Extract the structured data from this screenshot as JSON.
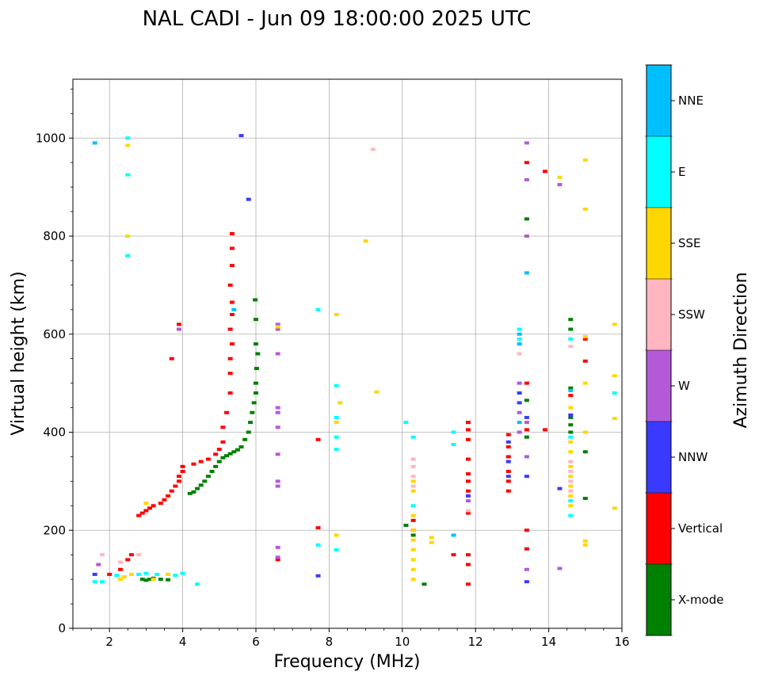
{
  "chart_data": {
    "type": "scatter",
    "title": "NAL CADI - Jun 09 18:00:00 2025 UTC",
    "xlabel": "Frequency (MHz)",
    "ylabel": "Virtual height (km)",
    "xlim": [
      1,
      16
    ],
    "ylim": [
      0,
      1120
    ],
    "xticks": [
      2,
      4,
      6,
      8,
      10,
      12,
      14,
      16
    ],
    "yticks": [
      0,
      200,
      400,
      600,
      800,
      1000
    ],
    "grid": true,
    "colorbar": {
      "title": "Azimuth Direction",
      "categories": [
        "X-mode",
        "Vertical",
        "NNW",
        "W",
        "SSW",
        "SSE",
        "E",
        "NNE"
      ],
      "colors": [
        "#008000",
        "#ff0000",
        "#3a3aff",
        "#b45ad8",
        "#ffb6c1",
        "#ffd700",
        "#00ffff",
        "#00bfff"
      ]
    },
    "series": [
      {
        "name": "X-mode",
        "color": "#008000",
        "points": [
          [
            2.9,
            100
          ],
          [
            3.0,
            98
          ],
          [
            3.1,
            100
          ],
          [
            3.2,
            102
          ],
          [
            3.4,
            100
          ],
          [
            3.6,
            99
          ],
          [
            4.2,
            275
          ],
          [
            4.3,
            278
          ],
          [
            4.4,
            285
          ],
          [
            4.5,
            292
          ],
          [
            4.6,
            300
          ],
          [
            4.7,
            310
          ],
          [
            4.8,
            320
          ],
          [
            4.9,
            330
          ],
          [
            5.0,
            340
          ],
          [
            5.1,
            348
          ],
          [
            5.2,
            352
          ],
          [
            5.3,
            356
          ],
          [
            5.4,
            360
          ],
          [
            5.5,
            364
          ],
          [
            5.6,
            370
          ],
          [
            5.7,
            385
          ],
          [
            5.8,
            400
          ],
          [
            5.85,
            420
          ],
          [
            5.9,
            440
          ],
          [
            5.95,
            460
          ],
          [
            6.0,
            480
          ],
          [
            6.0,
            500
          ],
          [
            6.02,
            530
          ],
          [
            6.05,
            560
          ],
          [
            6.0,
            580
          ],
          [
            6.0,
            630
          ],
          [
            5.98,
            670
          ],
          [
            10.1,
            210
          ],
          [
            10.3,
            190
          ],
          [
            10.6,
            90
          ],
          [
            13.4,
            465
          ],
          [
            13.4,
            390
          ],
          [
            13.4,
            835
          ],
          [
            14.6,
            610
          ],
          [
            14.6,
            630
          ],
          [
            14.6,
            430
          ],
          [
            14.6,
            415
          ],
          [
            14.6,
            400
          ],
          [
            14.6,
            490
          ],
          [
            15.0,
            360
          ],
          [
            15.0,
            265
          ]
        ]
      },
      {
        "name": "Vertical",
        "color": "#ff0000",
        "points": [
          [
            2.0,
            110
          ],
          [
            2.3,
            120
          ],
          [
            2.5,
            140
          ],
          [
            2.6,
            150
          ],
          [
            2.8,
            230
          ],
          [
            2.9,
            235
          ],
          [
            3.0,
            240
          ],
          [
            3.1,
            245
          ],
          [
            3.2,
            250
          ],
          [
            3.4,
            255
          ],
          [
            3.5,
            262
          ],
          [
            3.6,
            270
          ],
          [
            3.7,
            280
          ],
          [
            3.8,
            290
          ],
          [
            3.9,
            300
          ],
          [
            3.9,
            310
          ],
          [
            4.0,
            320
          ],
          [
            4.0,
            330
          ],
          [
            4.3,
            335
          ],
          [
            4.5,
            340
          ],
          [
            4.7,
            345
          ],
          [
            4.9,
            355
          ],
          [
            5.0,
            365
          ],
          [
            5.1,
            380
          ],
          [
            5.1,
            410
          ],
          [
            5.2,
            440
          ],
          [
            5.3,
            480
          ],
          [
            5.3,
            520
          ],
          [
            5.3,
            550
          ],
          [
            5.35,
            580
          ],
          [
            5.3,
            610
          ],
          [
            5.35,
            640
          ],
          [
            5.35,
            665
          ],
          [
            5.3,
            700
          ],
          [
            5.35,
            740
          ],
          [
            5.35,
            775
          ],
          [
            5.35,
            805
          ],
          [
            3.7,
            550
          ],
          [
            3.9,
            620
          ],
          [
            6.6,
            140
          ],
          [
            7.7,
            205
          ],
          [
            7.7,
            385
          ],
          [
            10.3,
            200
          ],
          [
            10.3,
            220
          ],
          [
            11.4,
            150
          ],
          [
            11.8,
            90
          ],
          [
            11.8,
            130
          ],
          [
            11.8,
            150
          ],
          [
            11.8,
            235
          ],
          [
            11.8,
            280
          ],
          [
            11.8,
            300
          ],
          [
            11.8,
            315
          ],
          [
            11.8,
            345
          ],
          [
            11.8,
            385
          ],
          [
            11.8,
            405
          ],
          [
            11.8,
            420
          ],
          [
            12.9,
            280
          ],
          [
            12.9,
            300
          ],
          [
            12.9,
            320
          ],
          [
            12.9,
            350
          ],
          [
            12.9,
            370
          ],
          [
            12.9,
            395
          ],
          [
            13.4,
            162
          ],
          [
            13.4,
            405
          ],
          [
            13.4,
            500
          ],
          [
            13.4,
            950
          ],
          [
            13.9,
            932
          ],
          [
            13.9,
            405
          ],
          [
            15.0,
            590
          ],
          [
            15.0,
            545
          ],
          [
            13.4,
            200
          ],
          [
            14.6,
            475
          ]
        ]
      },
      {
        "name": "NNW",
        "color": "#3a3aff",
        "points": [
          [
            1.6,
            110
          ],
          [
            5.6,
            1005
          ],
          [
            5.8,
            875
          ],
          [
            7.7,
            107
          ],
          [
            12.9,
            310
          ],
          [
            12.9,
            340
          ],
          [
            12.9,
            380
          ],
          [
            13.4,
            95
          ],
          [
            13.4,
            310
          ],
          [
            13.4,
            430
          ],
          [
            14.3,
            285
          ],
          [
            14.6,
            435
          ],
          [
            11.8,
            270
          ],
          [
            13.2,
            480
          ],
          [
            13.2,
            460
          ]
        ]
      },
      {
        "name": "W",
        "color": "#b45ad8",
        "points": [
          [
            1.7,
            130
          ],
          [
            3.9,
            610
          ],
          [
            6.6,
            145
          ],
          [
            6.6,
            165
          ],
          [
            6.6,
            290
          ],
          [
            6.6,
            300
          ],
          [
            6.6,
            355
          ],
          [
            6.6,
            410
          ],
          [
            6.6,
            440
          ],
          [
            6.6,
            450
          ],
          [
            6.6,
            560
          ],
          [
            6.6,
            610
          ],
          [
            6.6,
            620
          ],
          [
            13.4,
            120
          ],
          [
            13.4,
            350
          ],
          [
            13.4,
            420
          ],
          [
            13.4,
            800
          ],
          [
            13.4,
            915
          ],
          [
            13.4,
            990
          ],
          [
            14.3,
            122
          ],
          [
            14.3,
            905
          ],
          [
            13.2,
            500
          ],
          [
            13.2,
            440
          ],
          [
            13.2,
            400
          ],
          [
            11.8,
            260
          ]
        ]
      },
      {
        "name": "SSW",
        "color": "#ffb6c1",
        "points": [
          [
            1.8,
            150
          ],
          [
            2.3,
            135
          ],
          [
            2.8,
            150
          ],
          [
            9.2,
            977
          ],
          [
            10.3,
            290
          ],
          [
            10.3,
            310
          ],
          [
            10.3,
            330
          ],
          [
            10.3,
            345
          ],
          [
            14.6,
            575
          ],
          [
            14.6,
            340
          ],
          [
            14.6,
            320
          ],
          [
            14.6,
            300
          ],
          [
            14.6,
            280
          ],
          [
            11.8,
            240
          ],
          [
            13.2,
            560
          ]
        ]
      },
      {
        "name": "SSE",
        "color": "#ffd700",
        "points": [
          [
            2.3,
            100
          ],
          [
            2.4,
            105
          ],
          [
            2.6,
            110
          ],
          [
            2.5,
            800
          ],
          [
            2.5,
            985
          ],
          [
            3.0,
            255
          ],
          [
            3.2,
            100
          ],
          [
            3.6,
            110
          ],
          [
            6.6,
            615
          ],
          [
            7.7,
            650
          ],
          [
            8.2,
            190
          ],
          [
            8.2,
            420
          ],
          [
            8.2,
            640
          ],
          [
            8.3,
            460
          ],
          [
            9.0,
            790
          ],
          [
            9.3,
            482
          ],
          [
            10.3,
            100
          ],
          [
            10.3,
            120
          ],
          [
            10.3,
            140
          ],
          [
            10.3,
            160
          ],
          [
            10.3,
            180
          ],
          [
            10.3,
            200
          ],
          [
            10.3,
            230
          ],
          [
            10.3,
            280
          ],
          [
            10.3,
            300
          ],
          [
            10.8,
            175
          ],
          [
            10.8,
            185
          ],
          [
            14.3,
            920
          ],
          [
            14.6,
            250
          ],
          [
            14.6,
            270
          ],
          [
            14.6,
            290
          ],
          [
            14.6,
            310
          ],
          [
            14.6,
            330
          ],
          [
            14.6,
            360
          ],
          [
            14.6,
            380
          ],
          [
            14.6,
            450
          ],
          [
            15.0,
            170
          ],
          [
            15.0,
            178
          ],
          [
            15.0,
            400
          ],
          [
            15.0,
            500
          ],
          [
            15.0,
            595
          ],
          [
            15.0,
            855
          ],
          [
            15.0,
            955
          ],
          [
            15.8,
            245
          ],
          [
            15.8,
            428
          ],
          [
            15.8,
            515
          ],
          [
            15.8,
            620
          ]
        ]
      },
      {
        "name": "E",
        "color": "#00ffff",
        "points": [
          [
            1.6,
            95
          ],
          [
            1.8,
            95
          ],
          [
            2.2,
            108
          ],
          [
            2.5,
            760
          ],
          [
            2.5,
            925
          ],
          [
            2.5,
            1000
          ],
          [
            2.8,
            110
          ],
          [
            3.0,
            112
          ],
          [
            3.3,
            110
          ],
          [
            3.8,
            108
          ],
          [
            4.0,
            112
          ],
          [
            4.4,
            90
          ],
          [
            7.7,
            650
          ],
          [
            7.7,
            170
          ],
          [
            8.2,
            160
          ],
          [
            8.2,
            365
          ],
          [
            8.2,
            390
          ],
          [
            8.2,
            430
          ],
          [
            8.2,
            495
          ],
          [
            10.1,
            420
          ],
          [
            10.3,
            390
          ],
          [
            10.3,
            250
          ],
          [
            11.4,
            375
          ],
          [
            11.4,
            400
          ],
          [
            14.6,
            230
          ],
          [
            14.6,
            260
          ],
          [
            14.6,
            390
          ],
          [
            14.6,
            590
          ],
          [
            15.8,
            480
          ],
          [
            13.2,
            610
          ],
          [
            13.2,
            590
          ]
        ]
      },
      {
        "name": "NNE",
        "color": "#00bfff",
        "points": [
          [
            1.6,
            990
          ],
          [
            5.4,
            650
          ],
          [
            13.4,
            725
          ],
          [
            13.2,
            600
          ],
          [
            13.2,
            580
          ],
          [
            13.2,
            420
          ],
          [
            14.6,
            485
          ],
          [
            11.4,
            190
          ]
        ]
      }
    ]
  }
}
